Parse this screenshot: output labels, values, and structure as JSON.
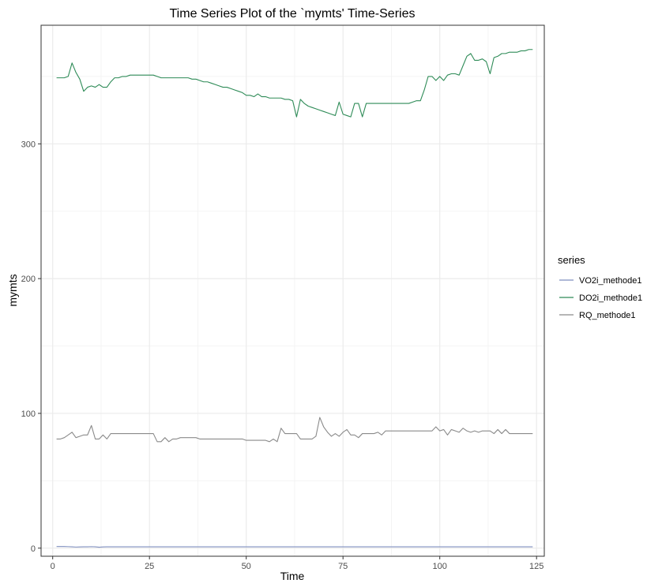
{
  "chart_data": {
    "type": "line",
    "title": "Time Series Plot of the `mymts' Time-Series",
    "xlabel": "Time",
    "ylabel": "mymts",
    "xlim": [
      -3,
      127
    ],
    "ylim": [
      -6,
      388
    ],
    "x_ticks": [
      0,
      25,
      50,
      75,
      100,
      125
    ],
    "x_tick_labels": [
      "0",
      "25",
      "50",
      "75",
      "100",
      "125"
    ],
    "y_ticks": [
      0,
      100,
      200,
      300
    ],
    "y_tick_labels": [
      "0",
      "100",
      "200",
      "300"
    ],
    "grid": true,
    "legend_title": "series",
    "legend_position": "right",
    "x_start": 1,
    "series": [
      {
        "name": "VO2i_methode1",
        "color": "#7f8fbf",
        "values": [
          1.2,
          1.2,
          1.2,
          1.1,
          1.0,
          0.8,
          0.9,
          1.0,
          1.0,
          1.1,
          1.0,
          0.7,
          0.9,
          1.0,
          1.0,
          1.0,
          1.0,
          1.0,
          1.0,
          1.0,
          1.0,
          1.0,
          1.0,
          1.0,
          1.0,
          1.0,
          1.0,
          1.0,
          1.0,
          1.0,
          1.0,
          1.0,
          1.0,
          1.0,
          1.0,
          1.0,
          1.0,
          1.0,
          1.0,
          1.0,
          1.0,
          1.0,
          1.0,
          1.0,
          1.0,
          1.0,
          1.0,
          1.0,
          1.0,
          1.0,
          1.0,
          1.0,
          1.0,
          1.0,
          1.0,
          1.0,
          1.0,
          1.0,
          1.0,
          1.0,
          1.0,
          1.0,
          1.0,
          1.0,
          1.0,
          1.0,
          1.0,
          1.0,
          1.0,
          1.0,
          1.0,
          1.0,
          1.0,
          1.0,
          1.0,
          1.0,
          1.0,
          1.0,
          1.0,
          1.0,
          1.0,
          1.0,
          1.0,
          1.0,
          1.0,
          1.0,
          1.0,
          1.0,
          1.0,
          1.0,
          1.0,
          1.0,
          1.0,
          1.0,
          1.0,
          1.0,
          1.0,
          1.0,
          1.0,
          1.0,
          1.0,
          1.0,
          1.0,
          1.0,
          1.0,
          1.0,
          1.0,
          1.0,
          1.0,
          1.0,
          1.0,
          1.0,
          1.0,
          1.0,
          1.0,
          1.0,
          1.0,
          1.0,
          1.0,
          1.0,
          1.0,
          1.0,
          1.0,
          1.0
        ]
      },
      {
        "name": "DO2i_methode1",
        "color": "#2e8b57",
        "values": [
          349,
          349,
          349,
          350,
          360,
          353,
          348,
          339,
          342,
          343,
          342,
          344,
          342,
          342,
          346,
          349,
          349,
          350,
          350,
          351,
          351,
          351,
          351,
          351,
          351,
          351,
          350,
          349,
          349,
          349,
          349,
          349,
          349,
          349,
          349,
          348,
          348,
          347,
          346,
          346,
          345,
          344,
          343,
          342,
          342,
          341,
          340,
          339,
          338,
          336,
          336,
          335,
          337,
          335,
          335,
          334,
          334,
          334,
          334,
          333,
          333,
          332,
          320,
          333,
          330,
          328,
          327,
          326,
          325,
          324,
          323,
          322,
          321,
          331,
          322,
          321,
          320,
          330,
          330,
          320,
          330,
          330,
          330,
          330,
          330,
          330,
          330,
          330,
          330,
          330,
          330,
          330,
          331,
          332,
          332,
          340,
          350,
          350,
          347,
          350,
          347,
          351,
          352,
          352,
          351,
          358,
          365,
          367,
          362,
          362,
          363,
          361,
          352,
          364,
          365,
          367,
          367,
          368,
          368,
          368,
          369,
          369,
          370,
          370
        ]
      },
      {
        "name": "RQ_methode1",
        "color": "#8a8a8a",
        "values": [
          81,
          81,
          82,
          84,
          86,
          82,
          83,
          84,
          84,
          91,
          81,
          81,
          84,
          81,
          85,
          85,
          85,
          85,
          85,
          85,
          85,
          85,
          85,
          85,
          85,
          85,
          79,
          79,
          82,
          79,
          81,
          81,
          82,
          82,
          82,
          82,
          82,
          81,
          81,
          81,
          81,
          81,
          81,
          81,
          81,
          81,
          81,
          81,
          81,
          80,
          80,
          80,
          80,
          80,
          80,
          79,
          81,
          79,
          89,
          85,
          85,
          85,
          85,
          81,
          81,
          81,
          81,
          83,
          97,
          90,
          86,
          83,
          85,
          83,
          86,
          88,
          84,
          84,
          82,
          85,
          85,
          85,
          85,
          86,
          84,
          87,
          87,
          87,
          87,
          87,
          87,
          87,
          87,
          87,
          87,
          87,
          87,
          87,
          90,
          87,
          88,
          84,
          88,
          87,
          86,
          89,
          87,
          86,
          87,
          86,
          87,
          87,
          87,
          85,
          88,
          85,
          88,
          85,
          85,
          85,
          85,
          85,
          85,
          85
        ]
      }
    ]
  }
}
